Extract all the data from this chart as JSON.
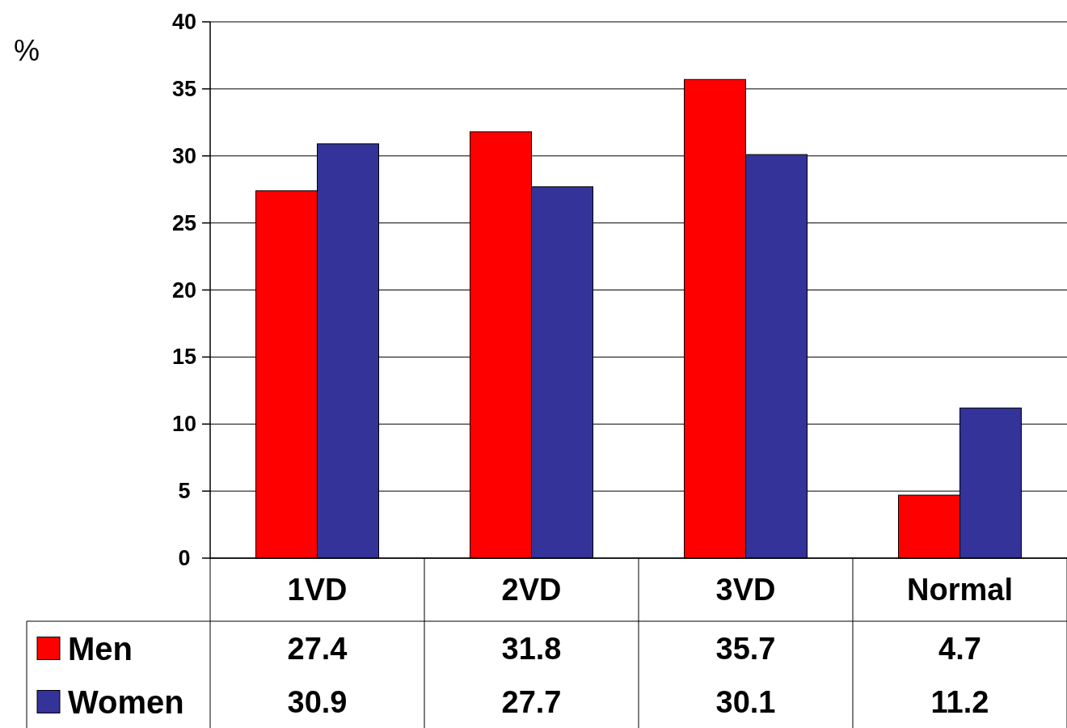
{
  "chart_data": {
    "type": "bar",
    "ylabel": "%",
    "categories": [
      "1VD",
      "2VD",
      "3VD",
      "Normal"
    ],
    "series": [
      {
        "name": "Men",
        "color": "#ff0000",
        "values": [
          27.4,
          31.8,
          35.7,
          4.7
        ]
      },
      {
        "name": "Women",
        "color": "#333399",
        "values": [
          30.9,
          27.7,
          30.1,
          11.2
        ]
      }
    ],
    "ylim": [
      0,
      40
    ],
    "yticks": [
      0,
      5,
      10,
      15,
      20,
      25,
      30,
      35,
      40
    ],
    "grid": "y",
    "legend": "bottom left",
    "data_labels": true
  }
}
